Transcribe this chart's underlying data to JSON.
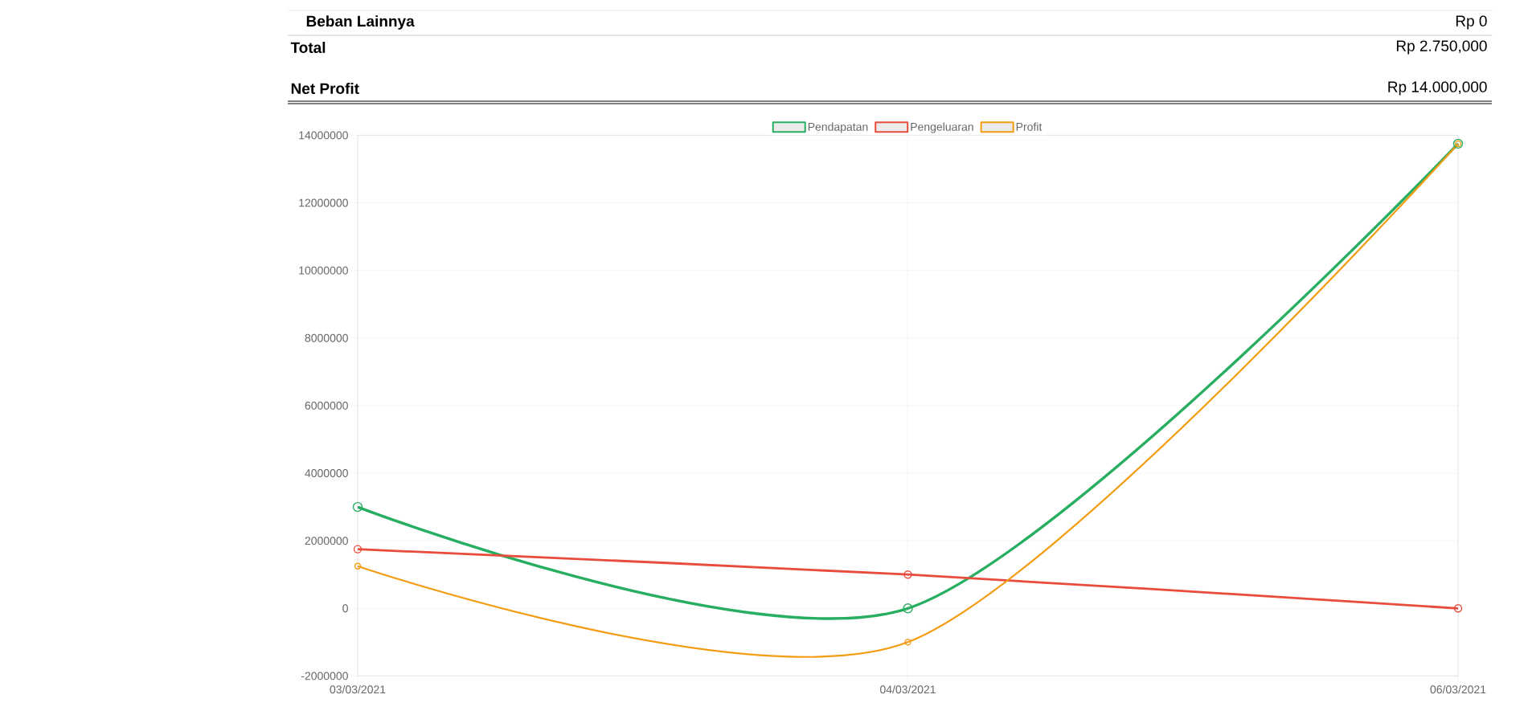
{
  "chart_data": {
    "type": "line",
    "categories": [
      "03/03/2021",
      "04/03/2021",
      "06/03/2021"
    ],
    "series": [
      {
        "name": "Pendapatan",
        "color": "#27ae60",
        "values": [
          3000000,
          0,
          13750000
        ]
      },
      {
        "name": "Pengeluaran",
        "color": "#e74c3c",
        "values": [
          1750000,
          1000000,
          0
        ]
      },
      {
        "name": "Profit",
        "color": "#f39c12",
        "values": [
          1250000,
          -1000000,
          13750000
        ]
      }
    ],
    "ylim": [
      -2000000,
      14000000
    ],
    "yticks": [
      -2000000,
      0,
      2000000,
      4000000,
      6000000,
      8000000,
      10000000,
      12000000,
      14000000
    ],
    "grid": true,
    "legend": "top",
    "marker": "circle",
    "line_style": "solid",
    "annotations": [
      "Beban Lainnya",
      "Rp 0",
      "Total",
      "Rp 2.750,000",
      "Net Profit",
      "Rp 14.000,000"
    ]
  }
}
